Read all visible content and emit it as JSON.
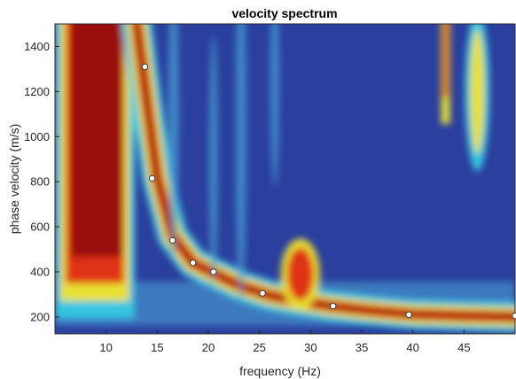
{
  "chart_data": {
    "type": "heatmap",
    "title": "velocity spectrum",
    "xlabel": "frequency (Hz)",
    "ylabel": "phase velocity (m/s)",
    "xlim": [
      5,
      50
    ],
    "ylim": [
      125,
      1500
    ],
    "xticks": [
      10,
      15,
      20,
      25,
      30,
      35,
      40,
      45
    ],
    "yticks": [
      200,
      400,
      600,
      800,
      1000,
      1200,
      1400
    ],
    "colormap": "jet",
    "grid": false,
    "picked_points": {
      "marker_color": "#ffffff",
      "x": [
        13.8,
        14.5,
        16.5,
        18.5,
        20.5,
        25.3,
        32.2,
        39.6,
        50.0
      ],
      "y": [
        1310,
        815,
        540,
        440,
        400,
        305,
        248,
        210,
        205
      ]
    }
  }
}
